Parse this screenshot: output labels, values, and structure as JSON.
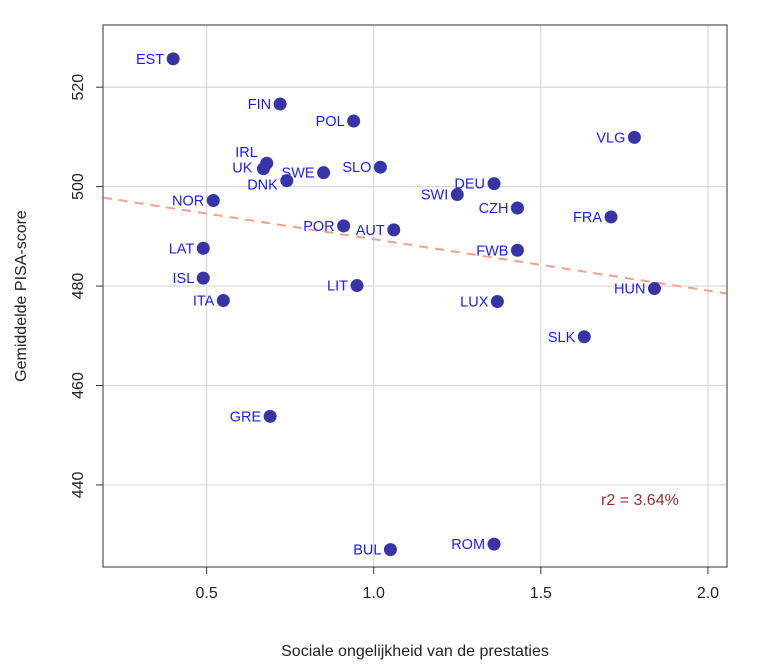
{
  "chart_data": {
    "type": "scatter",
    "title": "",
    "xlabel": "Sociale ongelijkheid van de prestaties",
    "ylabel": "Gemiddelde PISA-score",
    "xlim": [
      0.19,
      2.057
    ],
    "ylim": [
      423.5,
      532.5
    ],
    "xticks": [
      0.5,
      1.0,
      1.5,
      2.0
    ],
    "xtick_labels": [
      "0.5",
      "1.0",
      "1.5",
      "2.0"
    ],
    "yticks": [
      440,
      460,
      480,
      500,
      520
    ],
    "ytick_labels": [
      "440",
      "460",
      "480",
      "500",
      "520"
    ],
    "grid": true,
    "point_color": "#3535a8",
    "label_color": "#1a1aff",
    "points": [
      {
        "label": "EST",
        "x": 0.4,
        "y": 525.7
      },
      {
        "label": "FIN",
        "x": 0.72,
        "y": 516.6
      },
      {
        "label": "POL",
        "x": 0.94,
        "y": 513.2
      },
      {
        "label": "VLG",
        "x": 1.78,
        "y": 509.9
      },
      {
        "label": "IRL",
        "x": 0.68,
        "y": 504.7
      },
      {
        "label": "UK",
        "x": 0.67,
        "y": 503.6
      },
      {
        "label": "SLO",
        "x": 1.02,
        "y": 503.9
      },
      {
        "label": "SWE",
        "x": 0.85,
        "y": 502.8
      },
      {
        "label": "DNK",
        "x": 0.74,
        "y": 501.2
      },
      {
        "label": "DEU",
        "x": 1.36,
        "y": 500.6
      },
      {
        "label": "SWI",
        "x": 1.25,
        "y": 498.4
      },
      {
        "label": "NOR",
        "x": 0.52,
        "y": 497.2
      },
      {
        "label": "CZH",
        "x": 1.43,
        "y": 495.7
      },
      {
        "label": "FRA",
        "x": 1.71,
        "y": 493.9
      },
      {
        "label": "POR",
        "x": 0.91,
        "y": 492.1
      },
      {
        "label": "AUT",
        "x": 1.06,
        "y": 491.3
      },
      {
        "label": "LAT",
        "x": 0.49,
        "y": 487.6
      },
      {
        "label": "FWB",
        "x": 1.43,
        "y": 487.2
      },
      {
        "label": "ISL",
        "x": 0.49,
        "y": 481.6
      },
      {
        "label": "LIT",
        "x": 0.95,
        "y": 480.1
      },
      {
        "label": "HUN",
        "x": 1.84,
        "y": 479.5
      },
      {
        "label": "ITA",
        "x": 0.55,
        "y": 477.1
      },
      {
        "label": "LUX",
        "x": 1.37,
        "y": 476.9
      },
      {
        "label": "SLK",
        "x": 1.63,
        "y": 469.8
      },
      {
        "label": "GRE",
        "x": 0.69,
        "y": 453.8
      },
      {
        "label": "ROM",
        "x": 1.36,
        "y": 428.1
      },
      {
        "label": "BUL",
        "x": 1.05,
        "y": 427.0
      }
    ],
    "regression_line": {
      "intercept": 499.75,
      "slope": -10.33,
      "color": "#f4a08a",
      "style": "dashed"
    },
    "annotation": {
      "text": "r2 = 3.64%",
      "x": 1.68,
      "y": 436.0,
      "color": "#a52a2a"
    }
  }
}
